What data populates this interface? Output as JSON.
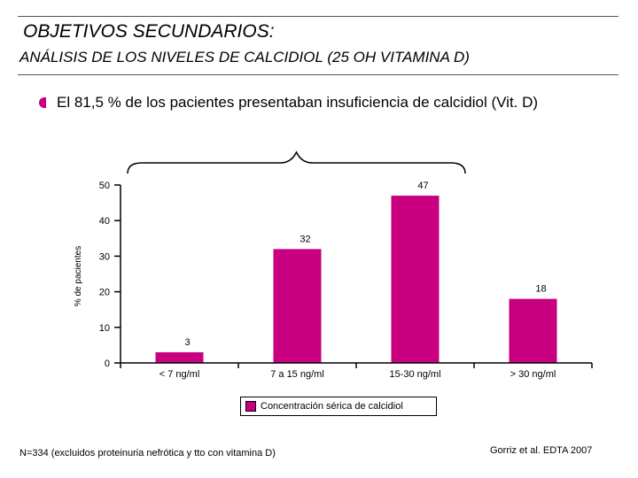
{
  "header": {
    "title": "OBJETIVOS SECUNDARIOS:",
    "subtitle": "ANÁLISIS DE LOS NIVELES DE CALCIDIOL (25 OH VITAMINA D)"
  },
  "bullet": {
    "text": "El 81,5 % de los pacientes presentaban insuficiencia de calcidiol (Vit. D)"
  },
  "colors": {
    "bar": "#c8007f",
    "bullet": "#c8007f"
  },
  "chart_data": {
    "type": "bar",
    "categories": [
      "< 7 ng/ml",
      "7 a 15 ng/ml",
      "15-30 ng/ml",
      "> 30 ng/ml"
    ],
    "values": [
      3,
      32,
      47,
      18
    ],
    "data_labels": [
      "3",
      "32",
      "47",
      "18"
    ],
    "ylabel": "% de pacientes",
    "yticks": [
      0,
      10,
      20,
      30,
      40,
      50
    ],
    "ylim": [
      0,
      50
    ],
    "legend": "Concentración sérica de calcidiol",
    "legend_position": "bottom"
  },
  "footer": {
    "note": "N=334 (excluidos proteinuria nefrótica y tto con vitamina D)",
    "citation": "Gorriz et al. EDTA 2007"
  }
}
